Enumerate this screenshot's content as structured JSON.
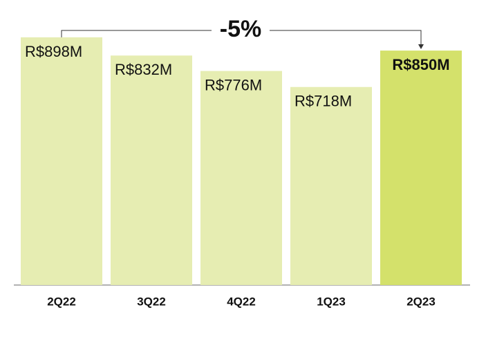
{
  "chart_data": {
    "type": "bar",
    "categories": [
      "2Q22",
      "3Q22",
      "4Q22",
      "1Q23",
      "2Q23"
    ],
    "values": [
      898,
      832,
      776,
      718,
      850
    ],
    "value_labels": [
      "R$898M",
      "R$832M",
      "R$776M",
      "R$718M",
      "R$850M"
    ],
    "colors": [
      "#e6edb2",
      "#e6edb2",
      "#e6edb2",
      "#e6edb2",
      "#d4e16b"
    ],
    "annotation": "-5%"
  }
}
